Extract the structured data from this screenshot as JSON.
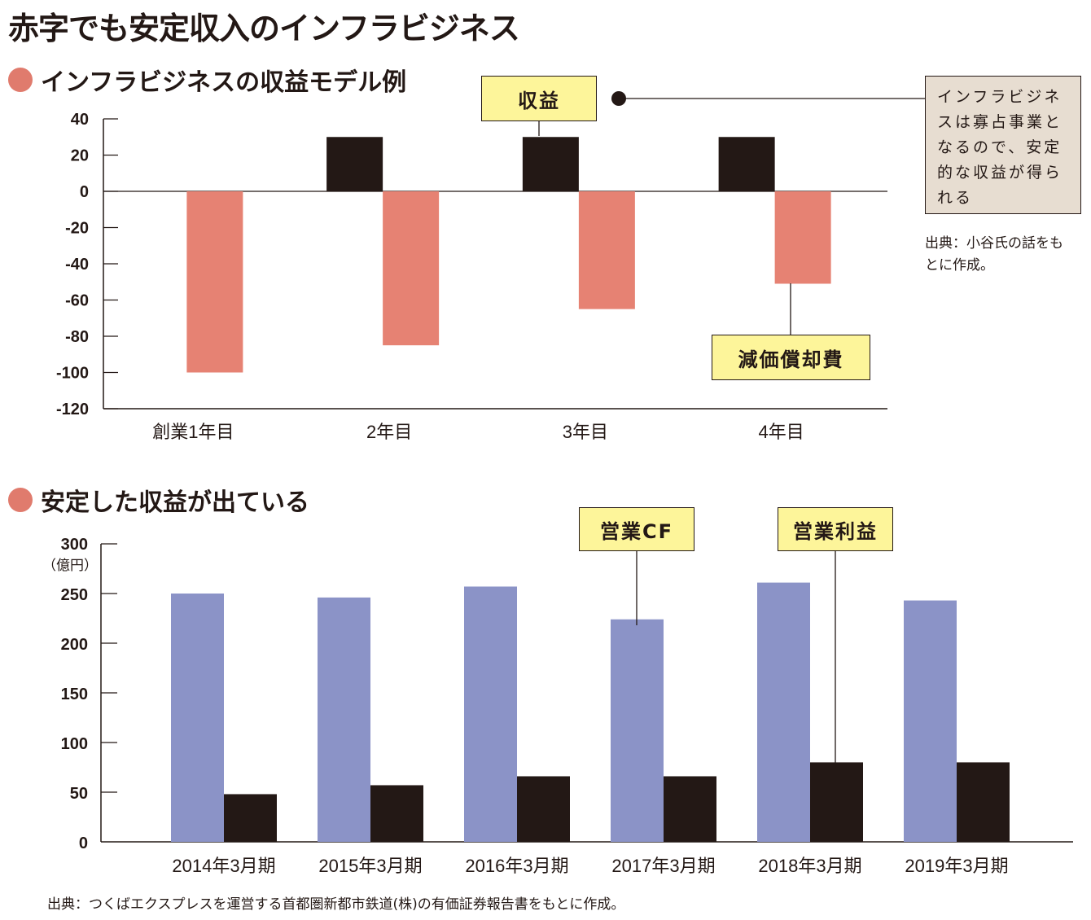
{
  "title": "赤字でも安定収入のインフラビジネス",
  "section1": {
    "title": "インフラビジネスの収益モデル例",
    "callout_revenue": "収益",
    "callout_depreciation": "減価償却費",
    "note": "インフラビジネスは寡占事業となるので、安定的な収益が得られる",
    "source": "出典：小谷氏の話をもとに作成。"
  },
  "section2": {
    "title": "安定した収益が出ている",
    "unit_label": "（億円）",
    "callout_cf": "営業CF",
    "callout_op": "営業利益",
    "source": "出典：つくばエクスプレスを運営する首都圏新都市鉄道(株)の有価証券報告書をもとに作成。"
  },
  "colors": {
    "revenue": "#231815",
    "depreciation": "#e68273",
    "operating_cf": "#8b93c7",
    "operating_profit": "#231815",
    "callout_bg": "#fdf59a",
    "note_bg": "#e7ddd1",
    "bullet": "#e07b6d"
  },
  "chart_data": [
    {
      "type": "bar",
      "title": "インフラビジネスの収益モデル例",
      "categories": [
        "創業1年目",
        "2年目",
        "3年目",
        "4年目"
      ],
      "series": [
        {
          "name": "収益",
          "values": [
            0,
            30,
            30,
            30
          ]
        },
        {
          "name": "減価償却費",
          "values": [
            -100,
            -85,
            -65,
            -51
          ]
        }
      ],
      "ylim": [
        -120,
        40
      ],
      "yticks": [
        40,
        20,
        0,
        -20,
        -40,
        -60,
        -80,
        -100,
        -120
      ],
      "xlabel": "",
      "ylabel": "",
      "grid": false
    },
    {
      "type": "bar",
      "title": "安定した収益が出ている",
      "categories": [
        "2014年3月期",
        "2015年3月期",
        "2016年3月期",
        "2017年3月期",
        "2018年3月期",
        "2019年3月期"
      ],
      "series": [
        {
          "name": "営業CF",
          "values": [
            250,
            246,
            257,
            224,
            261,
            243
          ]
        },
        {
          "name": "営業利益",
          "values": [
            48,
            57,
            66,
            66,
            80,
            80
          ]
        }
      ],
      "ylim": [
        0,
        300
      ],
      "yticks": [
        300,
        250,
        200,
        150,
        100,
        50,
        0
      ],
      "xlabel": "",
      "ylabel": "（億円）",
      "grid": false
    }
  ]
}
